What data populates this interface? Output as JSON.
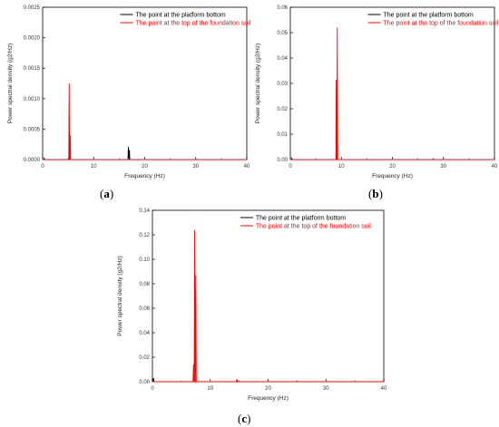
{
  "chart_data": [
    {
      "type": "line",
      "panel": "a",
      "panel_label": "a",
      "xlabel": "Frequency (Hz)",
      "ylabel": "Power spectral density (g2/Hz)",
      "xlim": [
        0,
        40
      ],
      "ylim": [
        0,
        0.0025
      ],
      "xticks": [
        0,
        10,
        20,
        30,
        40
      ],
      "yticks": [
        0.0,
        0.0005,
        0.001,
        0.0015,
        0.002,
        0.0025
      ],
      "ytick_labels": [
        "0.0000",
        "0.0005",
        "0.0010",
        "0.0015",
        "0.0020",
        "0.0025"
      ],
      "legend_position": "top-right",
      "series": [
        {
          "name": "The point at the platform bottom",
          "color": "#000000",
          "peaks": [
            [
              0.3,
              2e-05
            ],
            [
              16.8,
              0.00021
            ],
            [
              17.0,
              0.00016
            ]
          ]
        },
        {
          "name": "The point at the top of the foundation soil",
          "color": "#ff0000",
          "peaks": [
            [
              5.2,
              0.00125
            ],
            [
              5.4,
              0.0004
            ],
            [
              16.8,
              3e-05
            ]
          ]
        }
      ]
    },
    {
      "type": "line",
      "panel": "b",
      "panel_label": "b",
      "xlabel": "Frequency (Hz)",
      "ylabel": "Power spectral density (g2/Hz)",
      "xlim": [
        0,
        40
      ],
      "ylim": [
        0,
        0.06
      ],
      "xticks": [
        0,
        10,
        20,
        30,
        40
      ],
      "yticks": [
        0.0,
        0.01,
        0.02,
        0.03,
        0.04,
        0.05,
        0.06
      ],
      "ytick_labels": [
        "0.00",
        "0.01",
        "0.02",
        "0.03",
        "0.04",
        "0.05",
        "0.06"
      ],
      "legend_position": "top-right",
      "series": [
        {
          "name": "The point at the platform bottom",
          "color": "#000000",
          "peaks": [
            [
              0.3,
              0.0005
            ],
            [
              28.0,
              0.0003
            ]
          ]
        },
        {
          "name": "The point at the top of the foundation soil",
          "color": "#ff0000",
          "peaks": [
            [
              9.0,
              0.0315
            ],
            [
              9.2,
              0.052
            ],
            [
              28.0,
              0.0003
            ]
          ]
        }
      ]
    },
    {
      "type": "line",
      "panel": "c",
      "panel_label": "c",
      "xlabel": "Frequency (Hz)",
      "ylabel": "Power spectral density (g2/Hz)",
      "xlim": [
        0,
        40
      ],
      "ylim": [
        0,
        0.14
      ],
      "xticks": [
        0,
        10,
        20,
        30,
        40
      ],
      "yticks": [
        0.0,
        0.02,
        0.04,
        0.06,
        0.08,
        0.1,
        0.12,
        0.14
      ],
      "ytick_labels": [
        "0.00",
        "0.02",
        "0.04",
        "0.06",
        "0.08",
        "0.10",
        "0.12",
        "0.14"
      ],
      "legend_position": "top-right",
      "series": [
        {
          "name": "The point at the platform bottom",
          "color": "#000000",
          "peaks": [
            [
              0.2,
              0.003
            ],
            [
              14.7,
              0.0008
            ]
          ]
        },
        {
          "name": "The point at the top of the foundation soil",
          "color": "#ff0000",
          "peaks": [
            [
              7.1,
              0.014
            ],
            [
              7.3,
              0.124
            ],
            [
              7.5,
              0.087
            ],
            [
              14.6,
              0.002
            ]
          ]
        }
      ]
    }
  ]
}
